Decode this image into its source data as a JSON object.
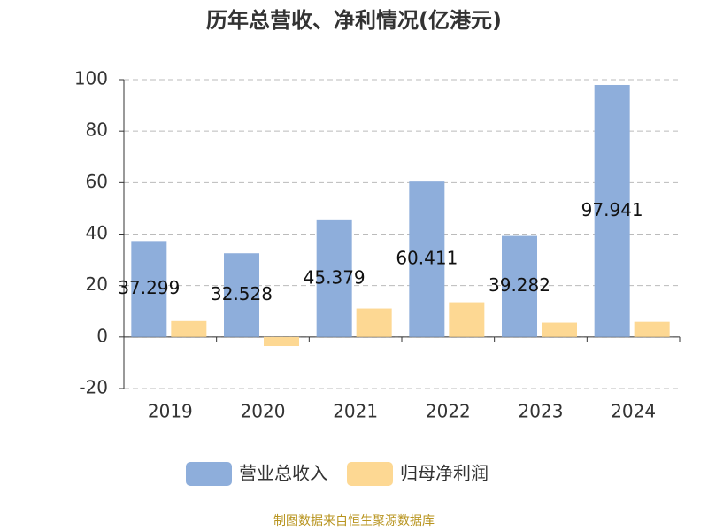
{
  "chart_data": {
    "type": "bar",
    "title": "历年总营收、净利情况(亿港元)",
    "categories": [
      "2019",
      "2020",
      "2021",
      "2022",
      "2023",
      "2024"
    ],
    "series": [
      {
        "name": "营业总收入",
        "color": "#8eaedb",
        "values": [
          37.299,
          32.528,
          45.379,
          60.411,
          39.282,
          97.941
        ],
        "labels": true
      },
      {
        "name": "归母净利润",
        "color": "#fdd893",
        "values": [
          6.2,
          -3.5,
          11.1,
          13.5,
          5.6,
          5.9
        ],
        "labels": false
      }
    ],
    "ylim": [
      -20,
      100
    ],
    "yticks": [
      -20,
      0,
      20,
      40,
      60,
      80,
      100
    ],
    "grid": true,
    "legend": "bottom",
    "source": "制图数据来自恒生聚源数据库"
  }
}
